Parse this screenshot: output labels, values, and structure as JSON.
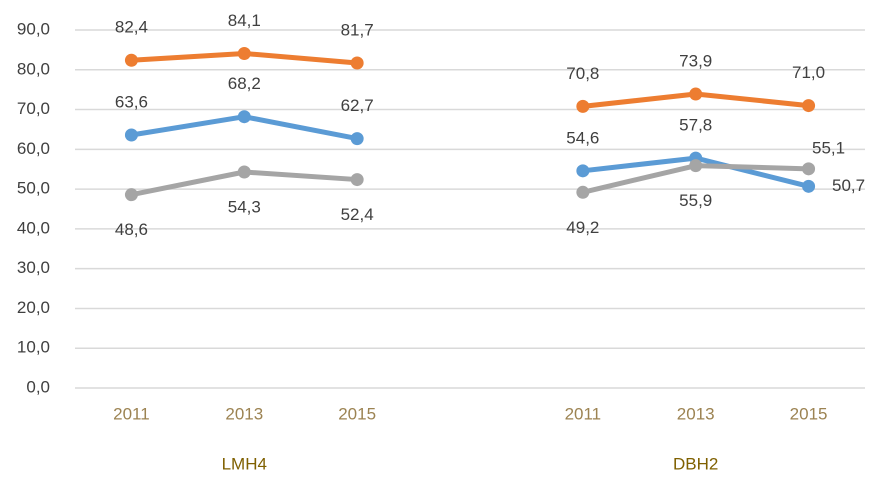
{
  "chart_data": {
    "type": "line",
    "categories": [
      "2011",
      "2013",
      "2015",
      null,
      "2011",
      "2013",
      "2015"
    ],
    "group_labels": [
      "LMH4",
      "DBH2"
    ],
    "series": [
      {
        "color": "#ED7D31",
        "values": [
          82.4,
          84.1,
          81.7,
          null,
          70.8,
          73.9,
          71.0
        ],
        "value_labels": [
          "82,4",
          "84,1",
          "81,7",
          null,
          "70,8",
          "73,9",
          "71,0"
        ]
      },
      {
        "color": "#5B9BD5",
        "values": [
          63.6,
          68.2,
          62.7,
          null,
          54.6,
          57.8,
          50.7
        ],
        "value_labels": [
          "63,6",
          "68,2",
          "62,7",
          null,
          "54,6",
          "57,8",
          "50,7"
        ]
      },
      {
        "color": "#A5A5A5",
        "values": [
          48.6,
          54.3,
          52.4,
          null,
          49.2,
          55.9,
          55.1
        ],
        "value_labels": [
          "48,6",
          "54,3",
          "52,4",
          null,
          "49,2",
          "55,9",
          "55,1"
        ]
      }
    ],
    "ylim": [
      0,
      90
    ],
    "yticks": [
      {
        "value": 0,
        "label": "0,0"
      },
      {
        "value": 10,
        "label": "10,0"
      },
      {
        "value": 20,
        "label": "20,0"
      },
      {
        "value": 30,
        "label": "30,0"
      },
      {
        "value": 40,
        "label": "40,0"
      },
      {
        "value": 50,
        "label": "50,0"
      },
      {
        "value": 60,
        "label": "60,0"
      },
      {
        "value": 70,
        "label": "70,0"
      },
      {
        "value": 80,
        "label": "80,0"
      },
      {
        "value": 90,
        "label": "90,0"
      }
    ],
    "grid": true
  }
}
